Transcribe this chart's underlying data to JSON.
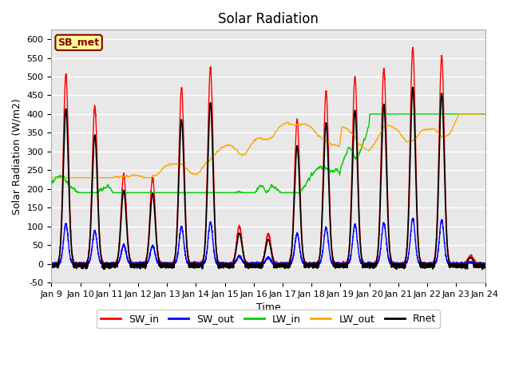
{
  "title": "Solar Radiation",
  "xlabel": "Time",
  "ylabel": "Solar Radiation (W/m2)",
  "ylim": [
    -50,
    625
  ],
  "yticks": [
    -50,
    0,
    50,
    100,
    150,
    200,
    250,
    300,
    350,
    400,
    450,
    500,
    550,
    600
  ],
  "xtick_labels": [
    "Jan 9",
    "Jan 10",
    "Jan 11",
    "Jan 12",
    "Jan 13",
    "Jan 14",
    "Jan 15",
    "Jan 16",
    "Jan 17",
    "Jan 18",
    "Jan 19",
    "Jan 20",
    "Jan 21",
    "Jan 22",
    "Jan 23",
    "Jan 24"
  ],
  "legend_labels": [
    "SW_in",
    "SW_out",
    "LW_in",
    "LW_out",
    "Rnet"
  ],
  "line_colors": [
    "#ff0000",
    "#0000ff",
    "#00cc00",
    "#ffa500",
    "#000000"
  ],
  "line_widths": [
    1.0,
    1.0,
    1.0,
    1.0,
    1.2
  ],
  "annotation_text": "SB_met",
  "annotation_bg": "#ffff99",
  "annotation_edge": "#8b0000",
  "bg_color": "#e8e8e8",
  "title_fontsize": 12,
  "label_fontsize": 9,
  "tick_fontsize": 8,
  "legend_fontsize": 9,
  "grid_color": "#ffffff",
  "n_points": 5400
}
